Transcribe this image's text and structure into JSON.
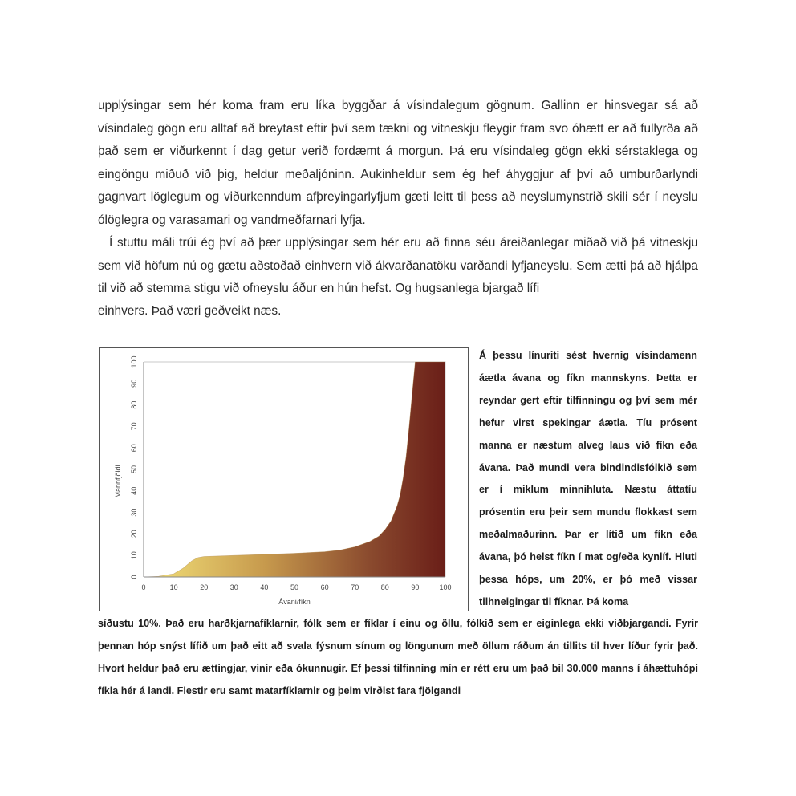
{
  "paragraphs": [
    "upplýsingar sem hér koma fram eru líka byggðar á vísindalegum gögnum. Gallinn er hinsvegar sá að vísindaleg gögn eru alltaf að breytast eftir því sem tækni og vitneskju fleygir fram svo óhætt er að fullyrða að það sem er viðurkennt í dag getur verið fordæmt á morgun. Þá eru vísindaleg gögn ekki sérstaklega og eingöngu miðuð við þig, heldur meðaljóninn. Aukinheldur sem ég hef áhyggjur af því að umburðarlyndi gagnvart löglegum og viðurkenndum afþreyingarlyfjum gæti leitt til þess að neyslumynstrið skili sér í neyslu ólöglegra og varasamari og vandmeðfarnari lyfja.",
    "Í stuttu máli trúi ég því að þær upplýsingar sem hér eru að finna séu áreiðanlegar miðað við þá vitneskju sem við höfum nú og gætu aðstoðað einhvern við ákvarðanatöku varðandi lyfjaneyslu. Sem ætti þá að hjálpa til við að stemma stigu við ofneyslu áður en hún hefst. Og hugsanlega bjargað lífi",
    "einhvers. Það væri geðveikt næs."
  ],
  "caption_top": "Á þessu línuriti sést hvernig vísindamenn áætla ávana og fíkn mannskyns. Þetta er reyndar gert eftir tilfinningu og því sem mér hefur virst spekingar áætla. Tíu prósent manna er næstum alveg laus við fíkn eða ávana. Það mundi vera bindindisfólkið sem er í miklum minnihluta. Næstu áttatíu prósentin eru þeir sem mundu flokkast sem meðalmaðurinn. Þar er lítið um fíkn eða ávana, þó helst fíkn í mat og/eða kynlíf. Hluti þessa hóps, um 20%, er þó með vissar tilhneigingar til fíknar. Þá koma",
  "caption_bottom": "síðustu 10%. Það eru harðkjarnafíklarnir, fólk sem er fíklar í einu og öllu, fólkið sem er eiginlega ekki viðbjargandi. Fyrir þennan hóp snýst lífið um það eitt að svala fýsnum sínum og löngunum með öllum ráðum án tillits til hver líður fyrir það. Hvort heldur það eru ættingjar, vinir eða ókunnugir. Ef þessi tilfinning mín er rétt eru um það bil  30.000 manns í áhættuhópi fíkla hér á landi. Flestir eru samt matarfíklarnir og þeim virðist fara fjölgandi",
  "chart_data": {
    "type": "area",
    "xlabel": "Ávani/fíkn",
    "ylabel": "Mannfjöldi",
    "xlim": [
      0,
      100
    ],
    "ylim": [
      0,
      100
    ],
    "x_ticks": [
      "0",
      "10",
      "20",
      "30",
      "40",
      "50",
      "60",
      "70",
      "80",
      "90",
      "100"
    ],
    "y_ticks": [
      "0",
      "10",
      "20",
      "30",
      "40",
      "50",
      "60",
      "70",
      "80",
      "90",
      "100"
    ],
    "grid": false,
    "x": [
      0,
      5,
      10,
      13,
      16,
      18,
      20,
      30,
      40,
      50,
      60,
      65,
      70,
      75,
      78,
      80,
      82,
      84,
      85,
      86,
      87,
      88,
      89,
      90,
      100
    ],
    "y": [
      0,
      0.3,
      1.5,
      4,
      7.5,
      9,
      9.5,
      10,
      10.5,
      11,
      11.7,
      12.5,
      14,
      16.5,
      19,
      22,
      26,
      33,
      38,
      46,
      56,
      70,
      85,
      100,
      100
    ],
    "colors": [
      "#f3e27a",
      "#c79a4d",
      "#8a4a2e",
      "#6a1e18"
    ]
  }
}
